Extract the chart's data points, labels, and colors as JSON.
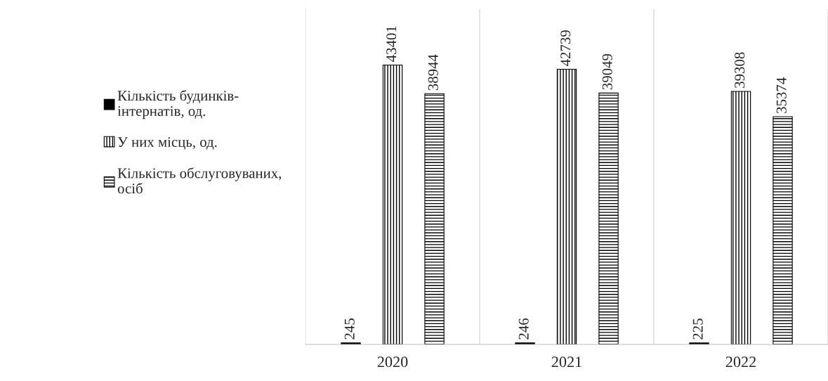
{
  "chart_data": {
    "type": "bar",
    "categories": [
      "2020",
      "2021",
      "2022"
    ],
    "series": [
      {
        "name": "Кількість будинків-\nінтернатів, од.",
        "color": "#000000",
        "values": [
          245,
          246,
          225
        ]
      },
      {
        "name": "У них місць, од.",
        "color": "#000000",
        "values": [
          43401,
          42739,
          39308
        ]
      },
      {
        "name": "Кількість обслуговуваних,\nосіб",
        "color": "#000000",
        "values": [
          38944,
          39049,
          35374
        ]
      }
    ],
    "data_labels": true,
    "grid": "x",
    "legend": "left"
  }
}
